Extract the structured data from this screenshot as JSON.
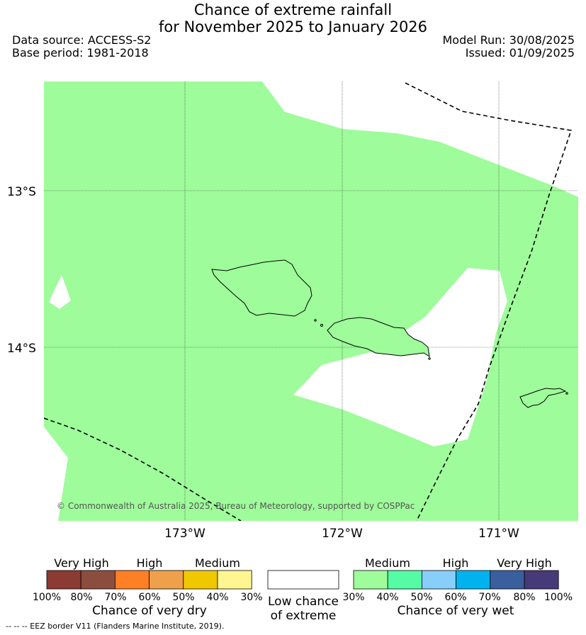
{
  "title_line1": "Chance of extreme rainfall",
  "title_line2": "for November 2025 to January 2026",
  "data_source": "Data source: ACCESS-S2",
  "base_period": "Base period: 1981-2018",
  "model_run": "Model Run: 30/08/2025",
  "issued": "Issued: 01/09/2025",
  "map": {
    "lat_labels": [
      "13°S",
      "14°S"
    ],
    "lon_labels": [
      "173°W",
      "172°W",
      "171°W"
    ],
    "copyright": "© Commonwealth of Australia 2025, Bureau of Meteorology, supported by COSPPac",
    "colors": {
      "medium_wet": "#9efc9a",
      "low": "#ffffff",
      "coast": "#000000",
      "grid": "#333333"
    }
  },
  "legend_dry": {
    "headers": [
      "Very High",
      "High",
      "Medium"
    ],
    "ticks": [
      "100%",
      "80%",
      "70%",
      "60%",
      "50%",
      "40%",
      "30%"
    ],
    "colors": [
      "#8b3a34",
      "#8b4e3e",
      "#ff7f24",
      "#f0a04b",
      "#f0c800",
      "#fff68f"
    ],
    "title": "Chance of very dry"
  },
  "legend_low": {
    "title_line1": "Low chance",
    "title_line2": "of extreme",
    "color": "#ffffff"
  },
  "legend_wet": {
    "headers": [
      "Medium",
      "High",
      "Very High"
    ],
    "ticks": [
      "30%",
      "40%",
      "50%",
      "60%",
      "70%",
      "80%",
      "100%"
    ],
    "colors": [
      "#9efc9a",
      "#54fca4",
      "#87cefa",
      "#00b2ee",
      "#3a5f9e",
      "#463a78"
    ],
    "title": "Chance of very wet"
  },
  "eez_note": "--  --  -- EEZ border V11 (Flanders Marine Institute, 2019)."
}
